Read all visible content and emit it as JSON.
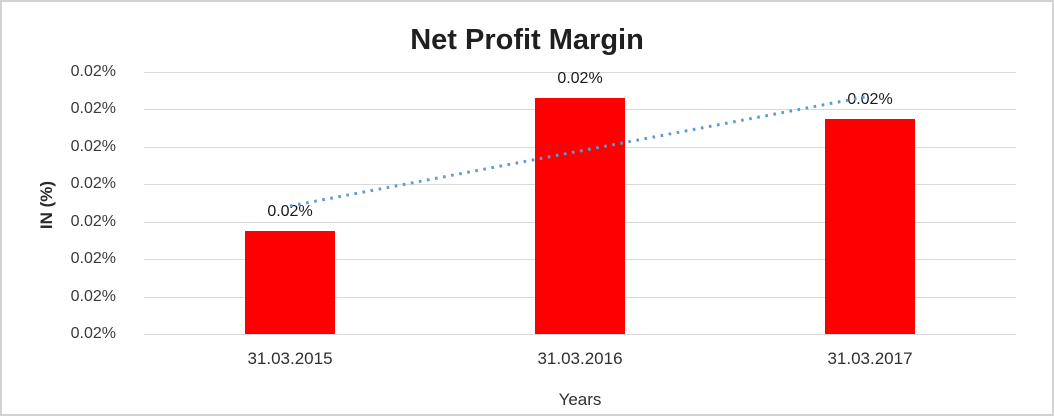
{
  "chart_data": {
    "type": "bar",
    "title": "Net Profit Margin",
    "xlabel": "Years",
    "ylabel": "IN (%)",
    "categories": [
      "31.03.2015",
      "31.03.2016",
      "31.03.2017"
    ],
    "series": [
      {
        "name": "Net Profit Margin",
        "values": [
          0.02,
          0.02,
          0.02
        ],
        "display_values": [
          "0.02%",
          "0.02%",
          "0.02%"
        ],
        "unit": "%"
      }
    ],
    "data_labels": [
      "0.02%",
      "0.02%",
      "0.02%"
    ],
    "y_ticks": [
      "0.02%",
      "0.02%",
      "0.02%",
      "0.02%",
      "0.02%",
      "0.02%",
      "0.02%",
      "0.02%"
    ],
    "bar_height_fractions": [
      0.395,
      0.9,
      0.82
    ],
    "bar_color": "#FF0000",
    "gridline_color": "#D9D9D9",
    "grid": true,
    "legend": "none",
    "trendline": {
      "type": "linear",
      "style": "dotted",
      "color": "#5B9BD5"
    }
  }
}
